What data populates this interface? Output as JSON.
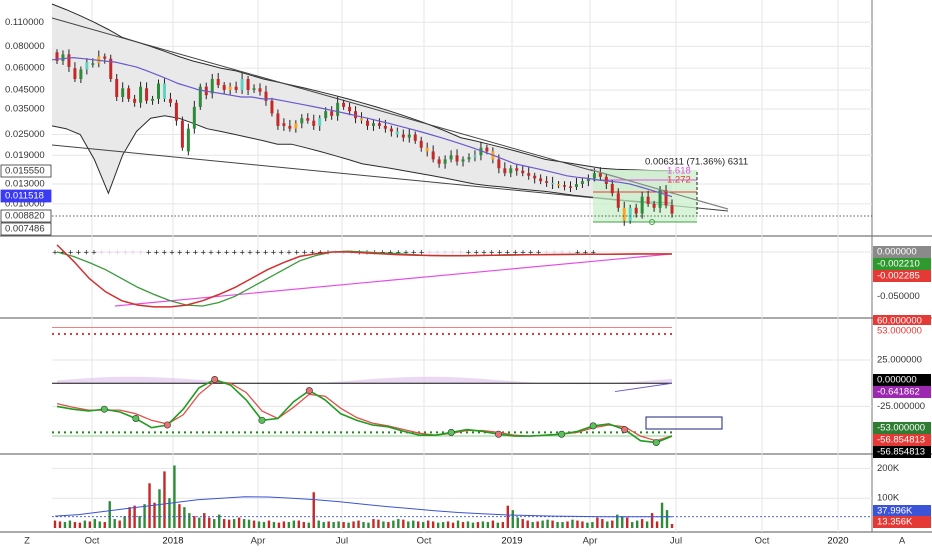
{
  "colors": {
    "up": "#2e8b3a",
    "down": "#c62828",
    "doji_up": "#5fd3c3",
    "doji_down": "#f5a623",
    "ma": "#6a5acd",
    "band_fill": "#e9e9e9",
    "band_line": "#2a2a2a",
    "grid": "#e6e6e6",
    "axis_text": "#333333",
    "pink": "#e64de6",
    "macd_red": "#d32f2f",
    "macd_green": "#3a9a3a",
    "osc_green": "#1f9d1f",
    "osc_red": "#e0504b",
    "hist": "#e2c8ec",
    "vol_ma": "#3b53d6",
    "green_zone": "#c8f0c8",
    "level_red": "#e53935",
    "marker_green": "#57c457",
    "marker_red": "#e57373",
    "blue_box": "#1a237e"
  },
  "chart_data": [
    {
      "type": "candlestick",
      "scale": "log",
      "y_ticks": [
        "0.110000",
        "0.080000",
        "0.060000",
        "0.045000",
        "0.035000",
        "0.025000",
        "0.019000",
        "0.013000",
        "0.010000"
      ],
      "ylim": [
        0.0069,
        0.14
      ],
      "x_labels": [
        "Oct",
        "2018",
        "Apr",
        "Jul",
        "Oct",
        "2019",
        "Apr",
        "Jul",
        "Oct",
        "2020"
      ],
      "price_labels": [
        {
          "text": "0.015550",
          "bg": "#ffffff",
          "fg": "#333333",
          "border": "#333333"
        },
        {
          "text": "0.011518",
          "bg": "#3b3bf5",
          "fg": "#ffffff"
        },
        {
          "text": "0.008820",
          "bg": "#ffffff",
          "fg": "#333333",
          "border": "#333333"
        },
        {
          "text": "0.007486",
          "bg": "#ffffff",
          "fg": "#333333",
          "border": "#333333"
        }
      ],
      "annotations": {
        "measure": "0.006311 (71.36%) 6311",
        "fib_1": "1.618",
        "fib_2": "1.272"
      },
      "candles": [
        [
          0.074,
          0.066
        ],
        [
          0.066,
          0.072
        ],
        [
          0.072,
          0.061
        ],
        [
          0.06,
          0.052
        ],
        [
          0.052,
          0.059
        ],
        [
          0.059,
          0.065
        ],
        [
          0.063,
          0.064
        ],
        [
          0.064,
          0.07
        ],
        [
          0.07,
          0.068
        ],
        [
          0.068,
          0.052
        ],
        [
          0.052,
          0.041
        ],
        [
          0.041,
          0.046
        ],
        [
          0.046,
          0.04
        ],
        [
          0.04,
          0.038
        ],
        [
          0.038,
          0.047
        ],
        [
          0.046,
          0.039
        ],
        [
          0.039,
          0.04
        ],
        [
          0.04,
          0.049
        ],
        [
          0.049,
          0.04
        ],
        [
          0.04,
          0.038
        ],
        [
          0.038,
          0.03
        ],
        [
          0.03,
          0.021
        ],
        [
          0.02,
          0.027
        ],
        [
          0.027,
          0.036
        ],
        [
          0.036,
          0.047
        ],
        [
          0.047,
          0.042
        ],
        [
          0.043,
          0.052
        ],
        [
          0.052,
          0.048
        ],
        [
          0.048,
          0.045
        ],
        [
          0.045,
          0.047
        ],
        [
          0.047,
          0.045
        ],
        [
          0.045,
          0.052
        ],
        [
          0.052,
          0.045
        ],
        [
          0.045,
          0.046
        ],
        [
          0.046,
          0.044
        ],
        [
          0.044,
          0.039
        ],
        [
          0.039,
          0.033
        ],
        [
          0.033,
          0.028
        ],
        [
          0.029,
          0.028
        ],
        [
          0.028,
          0.027
        ],
        [
          0.027,
          0.029
        ],
        [
          0.029,
          0.031
        ],
        [
          0.031,
          0.03
        ],
        [
          0.03,
          0.028
        ],
        [
          0.028,
          0.031
        ],
        [
          0.031,
          0.034
        ],
        [
          0.034,
          0.032
        ],
        [
          0.032,
          0.038
        ],
        [
          0.038,
          0.036
        ],
        [
          0.036,
          0.034
        ],
        [
          0.034,
          0.031
        ],
        [
          0.031,
          0.03
        ],
        [
          0.03,
          0.028
        ],
        [
          0.028,
          0.029
        ],
        [
          0.029,
          0.028
        ],
        [
          0.028,
          0.027
        ],
        [
          0.027,
          0.026
        ],
        [
          0.026,
          0.025
        ],
        [
          0.025,
          0.024
        ],
        [
          0.024,
          0.025
        ],
        [
          0.025,
          0.023
        ],
        [
          0.023,
          0.021
        ],
        [
          0.021,
          0.02
        ],
        [
          0.02,
          0.018
        ],
        [
          0.018,
          0.017
        ],
        [
          0.017,
          0.018
        ],
        [
          0.018,
          0.019
        ],
        [
          0.019,
          0.0175
        ],
        [
          0.0175,
          0.018
        ],
        [
          0.018,
          0.0185
        ],
        [
          0.0185,
          0.019
        ],
        [
          0.019,
          0.021
        ],
        [
          0.021,
          0.02
        ],
        [
          0.02,
          0.018
        ],
        [
          0.018,
          0.016
        ],
        [
          0.016,
          0.015
        ],
        [
          0.015,
          0.016
        ],
        [
          0.016,
          0.0155
        ],
        [
          0.0155,
          0.015
        ],
        [
          0.015,
          0.0145
        ],
        [
          0.0145,
          0.014
        ],
        [
          0.014,
          0.0135
        ],
        [
          0.0135,
          0.0132
        ],
        [
          0.0132,
          0.013
        ],
        [
          0.013,
          0.0128
        ],
        [
          0.0128,
          0.0126
        ],
        [
          0.0126,
          0.0125
        ],
        [
          0.0125,
          0.013
        ],
        [
          0.013,
          0.0135
        ],
        [
          0.0135,
          0.014
        ],
        [
          0.014,
          0.015
        ],
        [
          0.015,
          0.0143
        ],
        [
          0.0143,
          0.013
        ],
        [
          0.013,
          0.0115
        ],
        [
          0.0115,
          0.0095
        ],
        [
          0.0095,
          0.008
        ],
        [
          0.008,
          0.0095
        ],
        [
          0.0095,
          0.0088
        ],
        [
          0.0088,
          0.011
        ],
        [
          0.011,
          0.01
        ],
        [
          0.01,
          0.0095
        ],
        [
          0.0095,
          0.012
        ],
        [
          0.012,
          0.0098
        ],
        [
          0.0098,
          0.0088
        ]
      ],
      "ma_values": [
        0.067,
        0.068,
        0.069,
        0.068,
        0.067,
        0.066,
        0.065,
        0.063,
        0.061,
        0.058,
        0.055,
        0.052,
        0.049,
        0.047,
        0.045,
        0.044,
        0.043,
        0.042,
        0.041,
        0.041,
        0.04,
        0.04,
        0.039,
        0.038,
        0.037,
        0.036,
        0.035,
        0.034,
        0.033,
        0.032,
        0.031,
        0.03,
        0.029,
        0.028,
        0.027,
        0.026,
        0.025,
        0.024,
        0.023,
        0.022,
        0.021,
        0.02,
        0.019,
        0.018,
        0.017,
        0.0165,
        0.016,
        0.0155,
        0.015,
        0.0145,
        0.0142,
        0.014,
        0.0137,
        0.0135,
        0.0133,
        0.013,
        0.0125,
        0.012,
        0.0115,
        0.011
      ],
      "band_upper": [
        0.14,
        0.13,
        0.12,
        0.11,
        0.1,
        0.09,
        0.085,
        0.08,
        0.075,
        0.07,
        0.066,
        0.063,
        0.06,
        0.058,
        0.055,
        0.052,
        0.05,
        0.048,
        0.046,
        0.044,
        0.042,
        0.04,
        0.038,
        0.036,
        0.034,
        0.032,
        0.03,
        0.028,
        0.026,
        0.024,
        0.023,
        0.022,
        0.021,
        0.02,
        0.019,
        0.018,
        0.0175,
        0.017,
        0.0165,
        0.016,
        0.0158,
        0.0157,
        0.0156,
        0.0155,
        0.0155
      ],
      "band_lower": [
        0.028,
        0.027,
        0.025,
        0.018,
        0.0115,
        0.019,
        0.026,
        0.031,
        0.032,
        0.031,
        0.029,
        0.027,
        0.026,
        0.025,
        0.024,
        0.023,
        0.022,
        0.022,
        0.021,
        0.02,
        0.019,
        0.018,
        0.017,
        0.0165,
        0.016,
        0.0155,
        0.015,
        0.0145,
        0.014,
        0.0135,
        0.013,
        0.0127,
        0.0125,
        0.0122,
        0.012,
        0.0118,
        0.0115,
        0.0112,
        0.011,
        0.0108,
        0.0106,
        0.0104,
        0.0103,
        0.0102,
        0.0101
      ]
    },
    {
      "type": "line",
      "y_ticks": [
        "-0.050000"
      ],
      "ylim": [
        -0.07,
        0.009
      ],
      "value_labels": [
        {
          "text": "0.000000",
          "bg": "#8a8a8a",
          "fg": "#ffffff"
        },
        {
          "text": "-0.002210",
          "bg": "#2e9a2e",
          "fg": "#ffffff"
        },
        {
          "text": "-0.002285",
          "bg": "#e53935",
          "fg": "#ffffff"
        }
      ],
      "series": [
        {
          "values": [
            0,
            -0.005,
            -0.012,
            -0.02,
            -0.03,
            -0.04,
            -0.048,
            -0.055,
            -0.06,
            -0.061,
            -0.057,
            -0.05,
            -0.04,
            -0.03,
            -0.02,
            -0.01,
            -0.004,
            0.0,
            0.001,
            0.0,
            -0.001,
            -0.002,
            -0.003,
            -0.004,
            -0.004,
            -0.004,
            -0.004,
            -0.0035,
            -0.003,
            -0.003,
            -0.003,
            -0.0028,
            -0.0026,
            -0.0025,
            -0.0024,
            -0.0023,
            -0.0022,
            -0.0022,
            -0.0022
          ]
        },
        {
          "values": [
            0.008,
            -0.01,
            -0.03,
            -0.045,
            -0.055,
            -0.06,
            -0.062,
            -0.062,
            -0.06,
            -0.055,
            -0.048,
            -0.04,
            -0.03,
            -0.02,
            -0.012,
            -0.005,
            -0.002,
            0.0,
            0.0,
            -0.001,
            -0.002,
            -0.003,
            -0.0035,
            -0.004,
            -0.0042,
            -0.0042,
            -0.004,
            -0.0038,
            -0.0035,
            -0.0032,
            -0.003,
            -0.0029,
            -0.0027,
            -0.0026,
            -0.0025,
            -0.0024,
            -0.0023,
            -0.00229,
            -0.002285
          ]
        }
      ]
    },
    {
      "type": "line",
      "y_ticks": [
        "25.000000",
        "-25.000000"
      ],
      "ylim": [
        -72,
        66
      ],
      "value_labels": [
        {
          "text": "60.000000",
          "bg": "#e53935",
          "fg": "#ffffff"
        },
        {
          "text": "53.000000",
          "bg": "#ffffff",
          "fg": "#e53935"
        },
        {
          "text": "0.000000",
          "bg": "#000000",
          "fg": "#ffffff"
        },
        {
          "text": "-0.641862",
          "bg": "#9c27b0",
          "fg": "#ffffff"
        },
        {
          "text": "-53.000000",
          "bg": "#2e7d32",
          "fg": "#ffffff"
        },
        {
          "text": "-56.854813",
          "bg": "#e53935",
          "fg": "#ffffff"
        },
        {
          "text": "-56.854813",
          "bg": "#000000",
          "fg": "#ffffff"
        }
      ],
      "series": [
        {
          "values": [
            -25,
            -28,
            -30,
            -28,
            -31,
            -38,
            -48,
            -45,
            -28,
            -5,
            4,
            -2,
            -18,
            -40,
            -38,
            -20,
            -8,
            -18,
            -33,
            -40,
            -45,
            -47,
            -52,
            -56,
            -56,
            -53,
            -50,
            -52,
            -55,
            -57,
            -57,
            -56,
            -55,
            -52,
            -46,
            -44,
            -50,
            -62,
            -64,
            -57
          ]
        },
        {
          "values": [
            -22,
            -26,
            -29,
            -29,
            -29,
            -33,
            -40,
            -44,
            -34,
            -12,
            2,
            0,
            -10,
            -30,
            -38,
            -26,
            -12,
            -14,
            -27,
            -37,
            -43,
            -46,
            -50,
            -54,
            -56,
            -54,
            -51,
            -51,
            -53,
            -56,
            -57,
            -56,
            -55,
            -53,
            -48,
            -45,
            -47,
            -57,
            -62,
            -56.85
          ]
        }
      ]
    },
    {
      "type": "bar",
      "y_ticks": [
        "200K",
        "100K"
      ],
      "ylim": [
        0,
        235000
      ],
      "value_labels": [
        {
          "text": "37.996K",
          "bg": "#3b53d6",
          "fg": "#ffffff"
        },
        {
          "text": "13.356K",
          "bg": "#e53935",
          "fg": "#ffffff"
        }
      ],
      "values": [
        25000,
        22000,
        20000,
        25000,
        20000,
        18000,
        25000,
        22000,
        30000,
        22000,
        20000,
        90000,
        30000,
        25000,
        40000,
        70000,
        75000,
        40000,
        80000,
        150000,
        85000,
        130000,
        190000,
        100000,
        210000,
        80000,
        70000,
        50000,
        40000,
        35000,
        50000,
        35000,
        30000,
        45000,
        30000,
        28000,
        30000,
        35000,
        30000,
        28000,
        25000,
        22000,
        20000,
        25000,
        20000,
        18000,
        22000,
        20000,
        25000,
        25000,
        20000,
        18000,
        120000,
        25000,
        20000,
        22000,
        20000,
        22000,
        20000,
        18000,
        22000,
        25000,
        20000,
        18000,
        30000,
        28000,
        22000,
        20000,
        25000,
        30000,
        28000,
        22000,
        25000,
        22000,
        20000,
        25000,
        22000,
        18000,
        20000,
        22000,
        18000,
        25000,
        20000,
        22000,
        18000,
        20000,
        22000,
        20000,
        25000,
        18000,
        20000,
        75000,
        60000,
        35000,
        30000,
        25000,
        20000,
        22000,
        25000,
        28000,
        25000,
        20000,
        20000,
        22000,
        28000,
        25000,
        22000,
        18000,
        20000,
        35000,
        30000,
        22000,
        25000,
        45000,
        40000,
        35000,
        20000,
        25000,
        30000,
        22000,
        50000,
        22000,
        85000,
        60000,
        13356
      ],
      "ma_values": [
        40000,
        45000,
        55000,
        65000,
        75000,
        85000,
        95000,
        100000,
        105000,
        104000,
        100000,
        95000,
        88000,
        80000,
        72000,
        65000,
        58000,
        52000,
        48000,
        44000,
        42000,
        40000,
        39000,
        38000,
        38000,
        38000,
        37996
      ]
    }
  ],
  "footer": {
    "left_button": "Z",
    "right_button": "A"
  }
}
